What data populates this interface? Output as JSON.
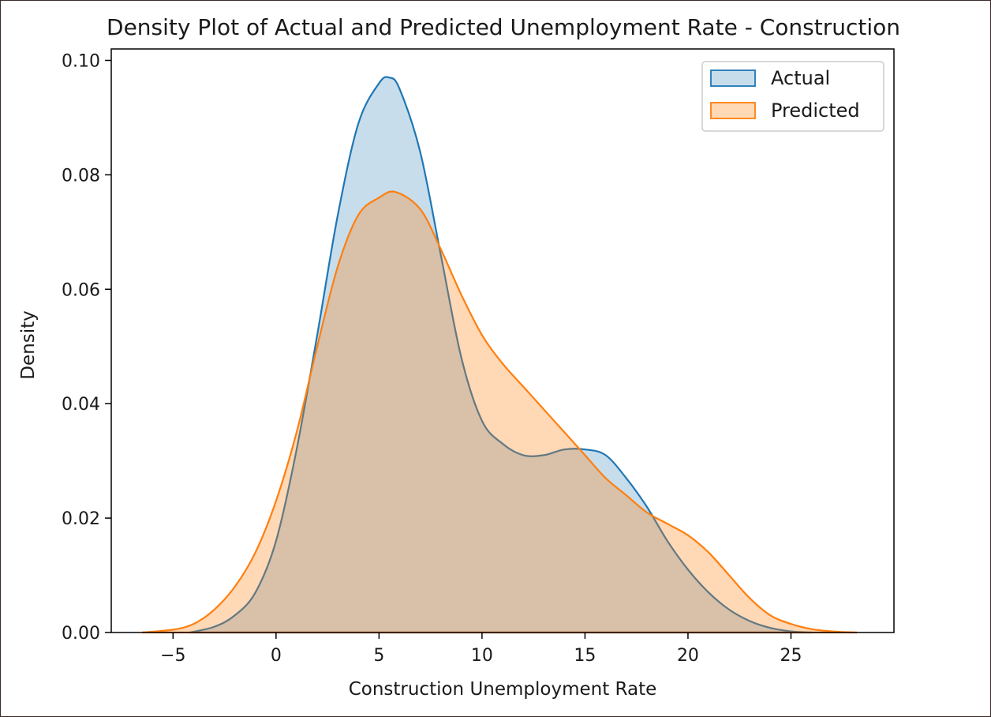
{
  "chart_data": {
    "type": "area",
    "title": "Density Plot of Actual and Predicted Unemployment Rate - Construction",
    "xlabel": "Construction Unemployment Rate",
    "ylabel": "Density",
    "xlim": [
      -8,
      30
    ],
    "ylim": [
      0,
      0.102
    ],
    "xticks": [
      -5,
      0,
      5,
      10,
      15,
      20,
      25
    ],
    "xtick_labels": [
      "−5",
      "0",
      "5",
      "10",
      "15",
      "20",
      "25"
    ],
    "yticks": [
      0,
      0.02,
      0.04,
      0.06,
      0.08,
      0.1
    ],
    "ytick_labels": [
      "0.00",
      "0.02",
      "0.04",
      "0.06",
      "0.08",
      "0.10"
    ],
    "grid": false,
    "legend_position": "top-right",
    "series": [
      {
        "name": "Actual",
        "color": "#1f77b4",
        "fill_opacity": 0.25,
        "x": [
          -4.2,
          -3,
          -2,
          -1,
          0,
          1,
          2,
          3,
          4,
          5,
          5.5,
          6,
          7,
          8,
          9,
          10,
          11,
          12,
          13,
          14,
          15,
          16,
          17,
          18,
          19,
          20,
          21,
          22,
          23,
          24,
          25,
          26
        ],
        "y": [
          0.0,
          0.001,
          0.003,
          0.007,
          0.016,
          0.032,
          0.052,
          0.073,
          0.089,
          0.096,
          0.097,
          0.095,
          0.084,
          0.066,
          0.048,
          0.037,
          0.033,
          0.031,
          0.031,
          0.032,
          0.032,
          0.031,
          0.027,
          0.022,
          0.016,
          0.011,
          0.007,
          0.004,
          0.002,
          0.0008,
          0.0002,
          0.0
        ]
      },
      {
        "name": "Predicted",
        "color": "#ff7f0e",
        "fill_opacity": 0.3,
        "x": [
          -6.5,
          -5,
          -4,
          -3,
          -2,
          -1,
          0,
          1,
          2,
          3,
          4,
          5,
          5.8,
          7,
          8,
          9,
          10,
          11,
          12,
          13,
          14,
          15,
          16,
          17,
          18,
          19,
          20,
          21,
          22,
          23,
          24,
          25,
          26,
          27,
          28.2
        ],
        "y": [
          0.0,
          0.0005,
          0.0015,
          0.004,
          0.008,
          0.014,
          0.023,
          0.035,
          0.05,
          0.064,
          0.073,
          0.076,
          0.077,
          0.074,
          0.067,
          0.059,
          0.052,
          0.047,
          0.043,
          0.039,
          0.035,
          0.031,
          0.027,
          0.024,
          0.021,
          0.019,
          0.017,
          0.014,
          0.01,
          0.006,
          0.003,
          0.0015,
          0.0006,
          0.0002,
          0.0
        ]
      }
    ]
  }
}
